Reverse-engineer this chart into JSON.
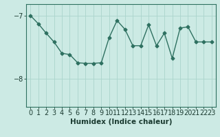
{
  "x": [
    0,
    1,
    2,
    3,
    4,
    5,
    6,
    7,
    8,
    9,
    10,
    11,
    12,
    13,
    14,
    15,
    16,
    17,
    18,
    19,
    20,
    21,
    22,
    23
  ],
  "y": [
    -7.0,
    -7.13,
    -7.28,
    -7.42,
    -7.6,
    -7.62,
    -7.75,
    -7.76,
    -7.76,
    -7.75,
    -7.35,
    -7.08,
    -7.22,
    -7.48,
    -7.48,
    -7.15,
    -7.48,
    -7.28,
    -7.68,
    -7.2,
    -7.18,
    -7.42,
    -7.42,
    -7.42
  ],
  "line_color": "#2e7060",
  "marker": "D",
  "marker_size": 2.5,
  "bg_color": "#cceae4",
  "grid_color": "#aad4cc",
  "xlabel": "Humidex (Indice chaleur)",
  "yticks": [
    -8,
    -7
  ],
  "ylim": [
    -8.45,
    -6.82
  ],
  "xlim": [
    -0.5,
    23.5
  ],
  "xlabel_fontsize": 7.5,
  "tick_fontsize": 7,
  "line_width": 1.0
}
